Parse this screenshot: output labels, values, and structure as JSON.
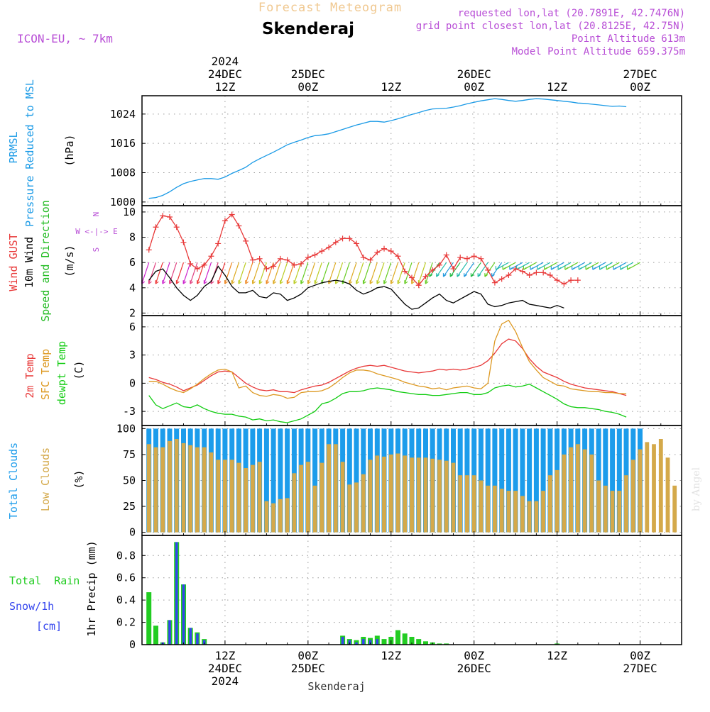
{
  "header": {
    "title": "Forecast Meteogram",
    "location": "Skenderaj",
    "model": "ICON-EU, ~ 7km",
    "requested": "requested lon,lat (20.7891E, 42.7476N)",
    "gridpoint": "grid point closest lon,lat (20.8125E, 42.75N)",
    "point_alt": "Point Altitude 613m",
    "model_alt": "Model Point Altitude 659.375m",
    "footer": "Skenderaj",
    "signature": "by Angel"
  },
  "time_axis": {
    "top": [
      {
        "t": 12,
        "lines": [
          "2024",
          "24DEC",
          "12Z"
        ]
      },
      {
        "t": 24,
        "lines": [
          "25DEC",
          "00Z"
        ]
      },
      {
        "t": 36,
        "lines": [
          "12Z"
        ]
      },
      {
        "t": 48,
        "lines": [
          "26DEC",
          "00Z"
        ]
      },
      {
        "t": 60,
        "lines": [
          "12Z"
        ]
      },
      {
        "t": 72,
        "lines": [
          "27DEC",
          "00Z"
        ]
      }
    ],
    "bottom": [
      {
        "t": 12,
        "lines": [
          "12Z",
          "24DEC",
          "2024"
        ]
      },
      {
        "t": 24,
        "lines": [
          "00Z",
          "25DEC"
        ]
      },
      {
        "t": 36,
        "lines": [
          "12Z"
        ]
      },
      {
        "t": 48,
        "lines": [
          "00Z",
          "26DEC"
        ]
      },
      {
        "t": 60,
        "lines": [
          "12Z"
        ]
      },
      {
        "t": 72,
        "lines": [
          "00Z",
          "27DEC"
        ]
      }
    ]
  },
  "colors": {
    "pressure": "#1a9ae6",
    "gust": "#e83838",
    "wind": "#000000",
    "dir_label": "#22bb22",
    "t2m": "#e83838",
    "tsfc": "#dd9922",
    "dew": "#11cc11",
    "tcc": "#1c9ceb",
    "lcc": "#d4a94a",
    "rain": "#22cc22",
    "snow": "#3344ee",
    "purple": "#b84ed6",
    "title": "#f0c890"
  },
  "chart_data": [
    {
      "id": "pressure",
      "type": "line",
      "ylabel": [
        "PRMSL",
        "Pressure Reduced to MSL",
        "(hPa)"
      ],
      "ylim": [
        999,
        1029
      ],
      "yticks": [
        1000,
        1008,
        1016,
        1024
      ],
      "x_start": 1,
      "x_step": 1,
      "series": [
        {
          "name": "PRMSL",
          "values": [
            1001,
            1001.2,
            1001.8,
            1002.8,
            1004.0,
            1005.0,
            1005.6,
            1006.0,
            1006.4,
            1006.4,
            1006.2,
            1006.8,
            1007.8,
            1008.6,
            1009.5,
            1010.8,
            1011.8,
            1012.7,
            1013.6,
            1014.6,
            1015.6,
            1016.3,
            1016.9,
            1017.6,
            1018.1,
            1018.3,
            1018.6,
            1019.2,
            1019.8,
            1020.4,
            1021.0,
            1021.5,
            1022.0,
            1022.0,
            1021.8,
            1022.2,
            1022.7,
            1023.3,
            1023.9,
            1024.4,
            1025.0,
            1025.4,
            1025.5,
            1025.6,
            1025.9,
            1026.3,
            1026.8,
            1027.2,
            1027.6,
            1027.9,
            1028.2,
            1028.0,
            1027.7,
            1027.5,
            1027.7,
            1028.0,
            1028.2,
            1028.1,
            1027.9,
            1027.7,
            1027.5,
            1027.3,
            1027.0,
            1026.9,
            1026.7,
            1026.5,
            1026.3,
            1026.1,
            1026.2,
            1026.0
          ]
        }
      ]
    },
    {
      "id": "wind",
      "type": "line",
      "ylabel": [
        "Wind GUST",
        "10m Wind",
        "Speed and Direction",
        "(m/s)"
      ],
      "compass": [
        "N",
        "W <-|-> E",
        "S"
      ],
      "ylim": [
        1.8,
        10.5
      ],
      "yticks": [
        2,
        4,
        6,
        8,
        10
      ],
      "x_start": 1,
      "x_step": 1,
      "series": [
        {
          "name": "Wind GUST",
          "markers": true,
          "values": [
            7.0,
            8.8,
            9.7,
            9.6,
            8.8,
            7.6,
            5.9,
            5.5,
            5.8,
            6.5,
            7.5,
            9.3,
            9.8,
            8.9,
            7.7,
            6.2,
            6.3,
            5.5,
            5.7,
            6.3,
            6.2,
            5.8,
            5.9,
            6.4,
            6.6,
            6.9,
            7.2,
            7.6,
            7.9,
            7.9,
            7.5,
            6.4,
            6.2,
            6.8,
            7.1,
            6.9,
            6.5,
            5.3,
            4.8,
            4.2,
            4.9,
            5.4,
            5.8,
            6.6,
            5.5,
            6.4,
            6.3,
            6.5,
            6.3,
            5.4,
            4.4,
            4.7,
            5.0,
            5.5,
            5.3,
            5.0,
            5.2,
            5.2,
            5.0,
            4.6,
            4.3,
            4.6,
            4.6
          ]
        },
        {
          "name": "10m Wind",
          "values": [
            4.6,
            5.3,
            5.5,
            4.8,
            4.0,
            3.4,
            3.0,
            3.4,
            4.1,
            4.5,
            5.7,
            5.0,
            4.1,
            3.6,
            3.6,
            3.8,
            3.3,
            3.2,
            3.6,
            3.5,
            3.0,
            3.2,
            3.5,
            4.0,
            4.2,
            4.4,
            4.5,
            4.6,
            4.5,
            4.3,
            3.8,
            3.5,
            3.7,
            4.0,
            4.1,
            3.9,
            3.3,
            2.7,
            2.3,
            2.4,
            2.8,
            3.2,
            3.5,
            3.0,
            2.8,
            3.1,
            3.4,
            3.7,
            3.5,
            2.7,
            2.5,
            2.6,
            2.8,
            2.9,
            3.0,
            2.7,
            2.6,
            2.5,
            2.4,
            2.6,
            2.4
          ]
        }
      ],
      "arrows": {
        "first_hour": 1,
        "count": 72,
        "y": 6.0
      }
    },
    {
      "id": "temperature",
      "type": "line",
      "ylabel": [
        "2m Temp",
        "SFC Temp",
        "dewpt Temp",
        "(C)"
      ],
      "ylim": [
        -4.5,
        7.2
      ],
      "yticks": [
        -3,
        0,
        3,
        6
      ],
      "x_start": 1,
      "x_step": 1,
      "series": [
        {
          "name": "2m Temp",
          "values": [
            0.6,
            0.4,
            0.1,
            -0.1,
            -0.4,
            -0.8,
            -0.5,
            -0.2,
            0.3,
            0.8,
            1.2,
            1.3,
            1.2,
            0.6,
            0.0,
            -0.4,
            -0.7,
            -0.8,
            -0.7,
            -0.9,
            -0.9,
            -1.0,
            -0.7,
            -0.5,
            -0.3,
            -0.2,
            0.1,
            0.5,
            0.9,
            1.3,
            1.6,
            1.8,
            1.9,
            1.8,
            1.9,
            1.7,
            1.5,
            1.3,
            1.2,
            1.1,
            1.2,
            1.3,
            1.5,
            1.4,
            1.5,
            1.4,
            1.5,
            1.7,
            1.9,
            2.4,
            3.2,
            4.2,
            4.7,
            4.5,
            3.7,
            2.6,
            1.8,
            1.2,
            0.9,
            0.6,
            0.2,
            -0.1,
            -0.3,
            -0.5,
            -0.6,
            -0.7,
            -0.8,
            -0.9,
            -1.1,
            -1.3
          ]
        },
        {
          "name": "SFC Temp",
          "values": [
            0.2,
            0.2,
            -0.1,
            -0.5,
            -0.8,
            -1.0,
            -0.6,
            -0.1,
            0.5,
            1.0,
            1.4,
            1.5,
            1.2,
            -0.5,
            -0.3,
            -1.0,
            -1.3,
            -1.4,
            -1.2,
            -1.3,
            -1.6,
            -1.5,
            -1.0,
            -0.9,
            -0.9,
            -0.8,
            -0.5,
            0.0,
            0.6,
            1.1,
            1.4,
            1.4,
            1.3,
            1.0,
            0.8,
            0.6,
            0.4,
            0.1,
            -0.1,
            -0.3,
            -0.4,
            -0.6,
            -0.5,
            -0.7,
            -0.5,
            -0.4,
            -0.3,
            -0.5,
            -0.6,
            0.0,
            4.5,
            6.3,
            6.7,
            5.5,
            3.8,
            2.3,
            1.4,
            0.6,
            0.2,
            -0.2,
            -0.3,
            -0.6,
            -0.7,
            -0.8,
            -0.9,
            -0.9,
            -1.0,
            -1.0,
            -1.1,
            -1.1
          ]
        },
        {
          "name": "dewpt Temp",
          "values": [
            -1.3,
            -2.3,
            -2.7,
            -2.4,
            -2.1,
            -2.5,
            -2.6,
            -2.3,
            -2.7,
            -3.0,
            -3.2,
            -3.3,
            -3.3,
            -3.5,
            -3.6,
            -3.9,
            -3.8,
            -4.0,
            -3.9,
            -4.1,
            -4.2,
            -4.0,
            -3.8,
            -3.4,
            -3.0,
            -2.2,
            -2.0,
            -1.6,
            -1.1,
            -0.9,
            -0.9,
            -0.8,
            -0.6,
            -0.5,
            -0.6,
            -0.7,
            -0.9,
            -1.0,
            -1.1,
            -1.2,
            -1.2,
            -1.3,
            -1.3,
            -1.2,
            -1.1,
            -1.0,
            -1.0,
            -1.2,
            -1.2,
            -1.0,
            -0.5,
            -0.3,
            -0.2,
            -0.4,
            -0.3,
            -0.1,
            -0.5,
            -0.9,
            -1.3,
            -1.7,
            -2.2,
            -2.5,
            -2.6,
            -2.6,
            -2.7,
            -2.8,
            -3.0,
            -3.1,
            -3.3,
            -3.6
          ]
        }
      ]
    },
    {
      "id": "clouds",
      "type": "bar",
      "ylabel": [
        "Total Clouds",
        "Low Clouds",
        "(%)"
      ],
      "ylim": [
        -3,
        103
      ],
      "yticks": [
        0,
        25,
        50,
        75,
        100
      ],
      "x_start": 1,
      "x_step": 1,
      "series": [
        {
          "name": "Total Clouds",
          "values": [
            100,
            100,
            100,
            100,
            100,
            100,
            100,
            100,
            100,
            100,
            100,
            100,
            100,
            100,
            100,
            100,
            100,
            100,
            100,
            100,
            100,
            100,
            100,
            100,
            100,
            100,
            100,
            100,
            100,
            100,
            100,
            100,
            100,
            100,
            100,
            100,
            100,
            100,
            100,
            100,
            100,
            100,
            100,
            100,
            100,
            100,
            100,
            100,
            100,
            100,
            100,
            100,
            100,
            100,
            100,
            100,
            100,
            100,
            100,
            100,
            100,
            100,
            100,
            100,
            100,
            100,
            100,
            100,
            100,
            100,
            100,
            100
          ]
        },
        {
          "name": "Low Clouds",
          "values": [
            85,
            82,
            82,
            88,
            90,
            86,
            84,
            82,
            82,
            77,
            70,
            70,
            70,
            67,
            62,
            65,
            68,
            30,
            28,
            32,
            33,
            57,
            65,
            68,
            45,
            67,
            85,
            85,
            68,
            46,
            48,
            56,
            70,
            74,
            73,
            75,
            76,
            74,
            72,
            72,
            72,
            71,
            70,
            69,
            67,
            55,
            55,
            55,
            50,
            45,
            45,
            42,
            40,
            40,
            35,
            30,
            30,
            40,
            55,
            60,
            75,
            82,
            85,
            80,
            75,
            50,
            45,
            40,
            40,
            55,
            70,
            80,
            87,
            85,
            90,
            72,
            45
          ]
        }
      ]
    },
    {
      "id": "precip",
      "type": "bar",
      "ylabel": [
        "Total  Rain",
        "Snow/1h",
        "[cm]",
        "1hr Precip (mm)"
      ],
      "ylim": [
        0,
        0.98
      ],
      "yticks": [
        0,
        0.2,
        0.4,
        0.6,
        0.8
      ],
      "x_start": 1,
      "x_step": 1,
      "series": [
        {
          "name": "Total Rain",
          "values": [
            0.47,
            0.17,
            0.02,
            0.22,
            0.92,
            0.54,
            0.15,
            0.11,
            0.05,
            0.0,
            0.0,
            0.0,
            0.0,
            0.0,
            0.0,
            0.0,
            0.0,
            0.0,
            0.0,
            0.0,
            0.0,
            0.0,
            0.0,
            0.0,
            0.0,
            0.0,
            0.0,
            0.0,
            0.08,
            0.05,
            0.04,
            0.07,
            0.06,
            0.08,
            0.05,
            0.07,
            0.13,
            0.1,
            0.07,
            0.05,
            0.03,
            0.02,
            0.01,
            0.01,
            0.0,
            0.0,
            0.0,
            0.0,
            0.0,
            0.0,
            0.0,
            0.0,
            0.0,
            0.0,
            0.0,
            0.0,
            0.0,
            0.0,
            0.0,
            0.01,
            0.0,
            0.0,
            0.0,
            0.0,
            0.0,
            0.0,
            0.0,
            0.0,
            0.0,
            0.0,
            0.0,
            0.0,
            0.0,
            0.0,
            0.0,
            0.0
          ]
        },
        {
          "name": "Snow/1h",
          "values": [
            0.0,
            0.0,
            0.02,
            0.22,
            0.92,
            0.54,
            0.15,
            0.1,
            0.04,
            0.0,
            0.0,
            0.0,
            0.0,
            0.0,
            0.0,
            0.0,
            0.0,
            0.0,
            0.0,
            0.0,
            0.0,
            0.0,
            0.0,
            0.0,
            0.0,
            0.0,
            0.0,
            0.0,
            0.07,
            0.04,
            0.02,
            0.05,
            0.04,
            0.05,
            0.0,
            0.0,
            0.0,
            0.0,
            0.0,
            0.0,
            0.0,
            0.0,
            0.0,
            0.0,
            0.0,
            0.0,
            0.0,
            0.0,
            0.0,
            0.0,
            0.0,
            0.0,
            0.0,
            0.0,
            0.0,
            0.0,
            0.0,
            0.0,
            0.0,
            0.0,
            0.0,
            0.0,
            0.0,
            0.0,
            0.0,
            0.0,
            0.0,
            0.0,
            0.0,
            0.0,
            0.0,
            0.0,
            0.0,
            0.0,
            0.0,
            0.0
          ]
        }
      ]
    }
  ]
}
